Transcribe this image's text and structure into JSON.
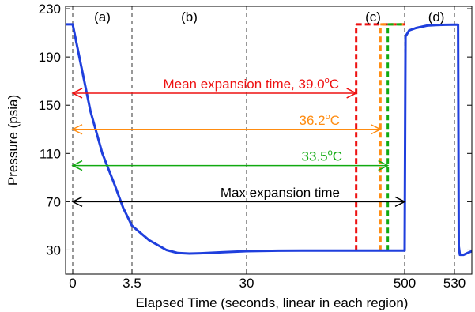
{
  "chart_data": {
    "type": "line",
    "xlabel": "Elapsed Time (seconds, linear in each region)",
    "ylabel": "Pressure (psia)",
    "ylim": [
      10,
      232
    ],
    "yticks": [
      30,
      70,
      110,
      150,
      190,
      230
    ],
    "xticks": [
      "0",
      "3.5",
      "30",
      "500",
      "530"
    ],
    "regions": [
      "(a)",
      "(b)",
      "(c)",
      "(d)"
    ],
    "grid": false,
    "colors": {
      "pressure": "#1f3fdd",
      "mean_39": "#ee1111",
      "mean_362": "#ff8c11",
      "mean_335": "#11aa11",
      "max": "#000000"
    },
    "series": [
      {
        "name": "Pressure",
        "points": [
          [
            -0.07,
            217
          ],
          [
            0.0,
            217
          ],
          [
            0.12,
            188
          ],
          [
            0.3,
            145
          ],
          [
            0.5,
            110
          ],
          [
            0.7,
            85
          ],
          [
            0.85,
            65
          ],
          [
            1.0,
            50
          ],
          [
            1.15,
            38
          ],
          [
            1.3,
            30
          ],
          [
            1.4,
            27.5
          ],
          [
            1.5,
            27
          ],
          [
            1.6,
            27.3
          ],
          [
            1.8,
            28.2
          ],
          [
            2.0,
            29
          ],
          [
            2.3,
            29.4
          ],
          [
            2.6,
            29.5
          ],
          [
            3.0,
            29.5
          ],
          [
            3.5,
            29.5
          ],
          [
            3.52,
            207
          ],
          [
            3.6,
            212
          ],
          [
            3.75,
            214
          ],
          [
            4.0,
            216
          ],
          [
            4.2,
            216.5
          ],
          [
            4.4,
            216.7
          ],
          [
            4.6,
            216.8
          ],
          [
            4.7,
            216.8
          ],
          [
            4.72,
            33
          ],
          [
            4.75,
            26
          ],
          [
            4.85,
            26
          ],
          [
            5.0,
            28
          ],
          [
            5.08,
            29
          ]
        ]
      }
    ],
    "arrows": [
      {
        "label": "Mean expansion time, 39.0°C",
        "label_text": "Mean expansion time, 39.0",
        "deg": "o",
        "unit": "C",
        "y": 160,
        "x_end": 3.04,
        "color": "mean_39"
      },
      {
        "label": "36.2°C",
        "label_text": "36.2",
        "deg": "o",
        "unit": "C",
        "y": 130,
        "x_end": 3.27,
        "color": "mean_362"
      },
      {
        "label": "33.5°C",
        "label_text": "33.5",
        "deg": "o",
        "unit": "C",
        "y": 100,
        "x_end": 3.34,
        "color": "mean_335"
      },
      {
        "label": "Max expansion time",
        "label_text": "Max expansion time",
        "deg": "",
        "unit": "",
        "y": 70,
        "x_end": 3.5,
        "color": "max"
      }
    ],
    "dashed_boxes": [
      {
        "x": 3.04,
        "top": 217,
        "bottom": 29.5,
        "color": "mean_39"
      },
      {
        "x": 3.27,
        "top": 217,
        "bottom": 29.5,
        "color": "mean_362"
      },
      {
        "x": 3.34,
        "top": 217,
        "bottom": 29.5,
        "color": "mean_335"
      }
    ],
    "region_boundaries": [
      0,
      1.0,
      2.0,
      3.5,
      4.6
    ]
  }
}
